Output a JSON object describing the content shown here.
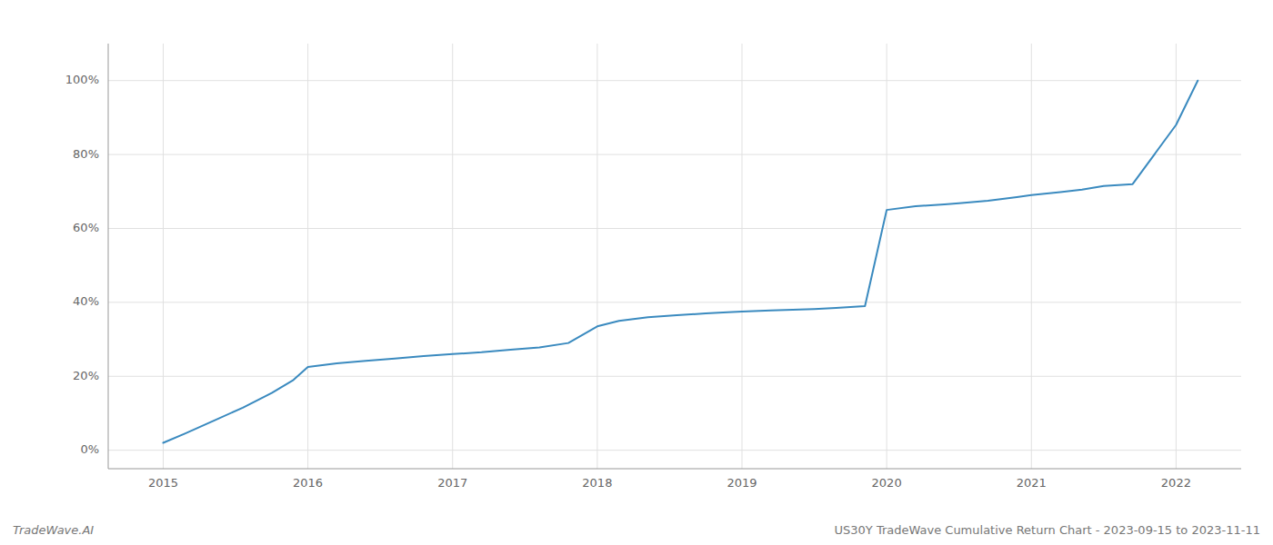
{
  "chart_data": {
    "type": "line",
    "title": "US30Y TradeWave Cumulative Return Chart - 2023-09-15 to 2023-11-11",
    "annotations": [
      "TradeWave.AI"
    ],
    "color": "#3a8abf",
    "grid": true,
    "x": [
      2015.0,
      2015.15,
      2015.35,
      2015.55,
      2015.75,
      2015.9,
      2016.0,
      2016.2,
      2016.4,
      2016.6,
      2016.8,
      2017.0,
      2017.2,
      2017.4,
      2017.6,
      2017.8,
      2018.0,
      2018.15,
      2018.35,
      2018.55,
      2018.75,
      2018.9,
      2019.0,
      2019.2,
      2019.35,
      2019.5,
      2019.65,
      2019.85,
      2020.0,
      2020.2,
      2020.4,
      2020.5,
      2020.7,
      2020.9,
      2021.0,
      2021.2,
      2021.35,
      2021.5,
      2021.7,
      2022.0,
      2022.15
    ],
    "values": [
      2.0,
      4.5,
      8.0,
      11.5,
      15.5,
      19.0,
      22.5,
      23.5,
      24.2,
      24.8,
      25.5,
      26.0,
      26.5,
      27.2,
      27.8,
      29.0,
      33.5,
      35.0,
      36.0,
      36.5,
      37.0,
      37.3,
      37.5,
      37.8,
      38.0,
      38.2,
      38.5,
      39.0,
      65.0,
      66.0,
      66.5,
      66.8,
      67.5,
      68.5,
      69.0,
      69.8,
      70.5,
      71.5,
      72.0,
      88.0,
      100.0
    ],
    "xlim": [
      2014.62,
      2022.45
    ],
    "ylim": [
      -5,
      110
    ],
    "xticks": [
      2015,
      2016,
      2017,
      2018,
      2019,
      2020,
      2021,
      2022
    ],
    "yticks": [
      {
        "value": 0,
        "label": "0%"
      },
      {
        "value": 20,
        "label": "20%"
      },
      {
        "value": 40,
        "label": "40%"
      },
      {
        "value": 60,
        "label": "60%"
      },
      {
        "value": 80,
        "label": "80%"
      },
      {
        "value": 100,
        "label": "100%"
      }
    ]
  }
}
